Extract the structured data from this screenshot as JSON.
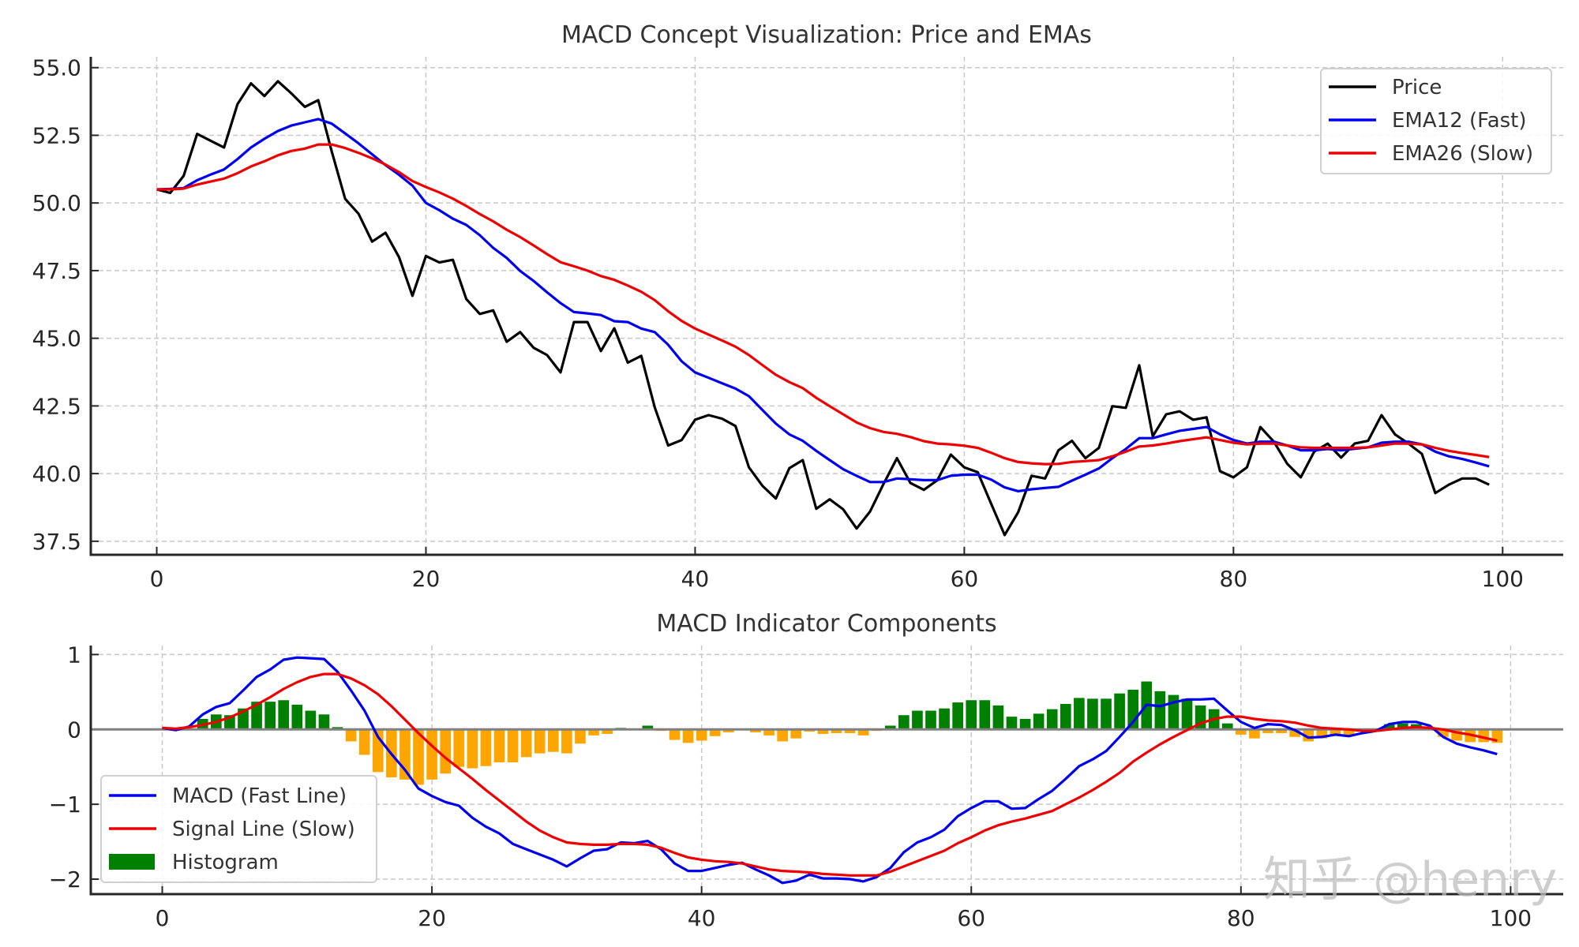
{
  "watermark": "知乎 @henry",
  "chart_data": [
    {
      "type": "line",
      "title": "MACD Concept Visualization: Price and EMAs",
      "xlabel": "",
      "ylabel": "",
      "xlim": [
        -4.9,
        104.5
      ],
      "ylim": [
        37.0,
        55.4
      ],
      "xticks": [
        0,
        20,
        40,
        60,
        80,
        100
      ],
      "yticks": [
        37.5,
        40.0,
        42.5,
        45.0,
        47.5,
        50.0,
        52.5,
        55.0
      ],
      "xtick_labels": [
        "0",
        "20",
        "40",
        "60",
        "80",
        "100"
      ],
      "ytick_labels": [
        "37.5",
        "40.0",
        "42.5",
        "45.0",
        "47.5",
        "50.0",
        "52.5",
        "55.0"
      ],
      "grid": true,
      "legend": "top-right",
      "series": [
        {
          "name": "Price",
          "color": "#000000",
          "values": [
            50.5,
            50.37,
            51.0,
            52.55,
            52.3,
            52.05,
            53.65,
            54.42,
            53.95,
            54.5,
            54.05,
            53.55,
            53.8,
            51.9,
            50.15,
            49.6,
            48.57,
            48.9,
            48.0,
            46.57,
            48.04,
            47.8,
            47.9,
            46.45,
            45.9,
            46.03,
            44.87,
            45.23,
            44.65,
            44.38,
            43.74,
            45.6,
            45.6,
            44.53,
            45.37,
            44.1,
            44.35,
            42.45,
            41.04,
            41.24,
            41.99,
            42.16,
            42.03,
            41.76,
            40.23,
            39.55,
            39.08,
            40.2,
            40.5,
            38.7,
            39.05,
            38.68,
            37.97,
            38.6,
            39.62,
            40.57,
            39.65,
            39.4,
            39.76,
            40.7,
            40.23,
            40.05,
            38.88,
            37.73,
            38.57,
            39.92,
            39.82,
            40.86,
            41.21,
            40.57,
            40.95,
            42.49,
            42.43,
            44.0,
            41.38,
            42.19,
            42.3,
            41.99,
            42.08,
            40.09,
            39.86,
            40.23,
            41.72,
            41.18,
            40.36,
            39.86,
            40.81,
            41.11,
            40.59,
            41.11,
            41.21,
            42.16,
            41.45,
            41.11,
            40.73,
            39.28,
            39.59,
            39.82,
            39.82,
            39.59
          ]
        },
        {
          "name": "EMA12 (Fast)",
          "color": "#0000ee",
          "values": [
            50.5,
            50.52,
            50.55,
            50.84,
            51.05,
            51.24,
            51.62,
            52.05,
            52.37,
            52.66,
            52.86,
            52.98,
            53.1,
            52.93,
            52.57,
            52.2,
            51.8,
            51.4,
            51.04,
            50.64,
            50.0,
            49.73,
            49.42,
            49.19,
            48.81,
            48.34,
            47.97,
            47.49,
            47.12,
            46.7,
            46.3,
            45.97,
            45.92,
            45.86,
            45.63,
            45.6,
            45.36,
            45.23,
            44.76,
            44.15,
            43.74,
            43.54,
            43.34,
            43.14,
            42.86,
            42.35,
            41.85,
            41.45,
            41.21,
            40.84,
            40.5,
            40.16,
            39.92,
            39.69,
            39.69,
            39.82,
            39.79,
            39.76,
            39.76,
            39.92,
            39.96,
            39.96,
            39.78,
            39.49,
            39.35,
            39.42,
            39.47,
            39.51,
            39.74,
            39.96,
            40.19,
            40.57,
            40.91,
            41.31,
            41.31,
            41.45,
            41.58,
            41.65,
            41.72,
            41.45,
            41.24,
            41.11,
            41.18,
            41.18,
            41.04,
            40.86,
            40.86,
            40.91,
            40.86,
            40.92,
            40.97,
            41.14,
            41.18,
            41.18,
            41.08,
            40.81,
            40.64,
            40.54,
            40.41,
            40.27
          ]
        },
        {
          "name": "EMA26 (Slow)",
          "color": "#ee0000",
          "values": [
            50.5,
            50.5,
            50.53,
            50.68,
            50.79,
            50.9,
            51.1,
            51.35,
            51.54,
            51.76,
            51.92,
            52.01,
            52.16,
            52.16,
            52.03,
            51.85,
            51.65,
            51.42,
            51.14,
            50.81,
            50.59,
            50.39,
            50.16,
            49.89,
            49.59,
            49.32,
            49.01,
            48.74,
            48.43,
            48.11,
            47.81,
            47.66,
            47.5,
            47.3,
            47.16,
            46.95,
            46.72,
            46.41,
            46.0,
            45.64,
            45.36,
            45.14,
            44.92,
            44.69,
            44.38,
            44.01,
            43.65,
            43.38,
            43.16,
            42.8,
            42.49,
            42.19,
            41.89,
            41.68,
            41.54,
            41.47,
            41.35,
            41.2,
            41.11,
            41.08,
            41.03,
            40.95,
            40.77,
            40.57,
            40.43,
            40.38,
            40.35,
            40.36,
            40.43,
            40.46,
            40.5,
            40.64,
            40.81,
            41.0,
            41.04,
            41.11,
            41.2,
            41.27,
            41.34,
            41.24,
            41.14,
            41.08,
            41.11,
            41.11,
            41.04,
            40.97,
            40.95,
            40.95,
            40.95,
            40.95,
            40.97,
            41.04,
            41.11,
            41.11,
            41.08,
            40.95,
            40.84,
            40.76,
            40.69,
            40.61
          ]
        }
      ]
    },
    {
      "type": "line",
      "title": "MACD Indicator Components",
      "xlabel": "",
      "ylabel": "",
      "xlim": [
        -5.3,
        103.9
      ],
      "ylim": [
        -2.2,
        1.12
      ],
      "xticks": [
        0,
        20,
        40,
        60,
        80,
        100
      ],
      "yticks": [
        -2,
        -1,
        0,
        1
      ],
      "xtick_labels": [
        "0",
        "20",
        "40",
        "60",
        "80",
        "100"
      ],
      "ytick_labels": [
        "−2",
        "−1",
        "0",
        "1"
      ],
      "grid": true,
      "legend": "lower-left",
      "zero_line_color": "#808080",
      "series": [
        {
          "name": "MACD (Fast Line)",
          "kind": "line",
          "color": "#0000ee",
          "values": [
            0.02,
            -0.01,
            0.04,
            0.2,
            0.3,
            0.35,
            0.52,
            0.7,
            0.8,
            0.93,
            0.96,
            0.95,
            0.94,
            0.77,
            0.52,
            0.25,
            -0.1,
            -0.33,
            -0.54,
            -0.79,
            -0.89,
            -0.97,
            -1.02,
            -1.18,
            -1.3,
            -1.39,
            -1.53,
            -1.6,
            -1.67,
            -1.74,
            -1.83,
            -1.72,
            -1.62,
            -1.6,
            -1.51,
            -1.52,
            -1.49,
            -1.6,
            -1.79,
            -1.89,
            -1.89,
            -1.85,
            -1.81,
            -1.78,
            -1.87,
            -1.95,
            -2.05,
            -2.02,
            -1.94,
            -1.99,
            -1.99,
            -2.0,
            -2.03,
            -1.97,
            -1.85,
            -1.64,
            -1.51,
            -1.44,
            -1.34,
            -1.16,
            -1.05,
            -0.96,
            -0.96,
            -1.06,
            -1.05,
            -0.93,
            -0.82,
            -0.66,
            -0.49,
            -0.4,
            -0.29,
            -0.1,
            0.1,
            0.33,
            0.31,
            0.36,
            0.4,
            0.4,
            0.41,
            0.25,
            0.1,
            0.02,
            0.07,
            0.06,
            -0.01,
            -0.11,
            -0.1,
            -0.07,
            -0.09,
            -0.05,
            -0.02,
            0.07,
            0.1,
            0.1,
            0.05,
            -0.1,
            -0.19,
            -0.24,
            -0.28,
            -0.33
          ]
        },
        {
          "name": "Signal Line (Slow)",
          "kind": "line",
          "color": "#ee0000",
          "values": [
            0.02,
            0.01,
            0.03,
            0.06,
            0.1,
            0.16,
            0.24,
            0.33,
            0.43,
            0.54,
            0.63,
            0.7,
            0.74,
            0.74,
            0.68,
            0.59,
            0.47,
            0.31,
            0.13,
            -0.05,
            -0.22,
            -0.38,
            -0.52,
            -0.66,
            -0.81,
            -0.95,
            -1.09,
            -1.23,
            -1.35,
            -1.44,
            -1.51,
            -1.53,
            -1.54,
            -1.54,
            -1.53,
            -1.53,
            -1.54,
            -1.58,
            -1.65,
            -1.71,
            -1.74,
            -1.76,
            -1.77,
            -1.79,
            -1.83,
            -1.87,
            -1.89,
            -1.9,
            -1.91,
            -1.93,
            -1.94,
            -1.95,
            -1.95,
            -1.95,
            -1.9,
            -1.83,
            -1.76,
            -1.69,
            -1.62,
            -1.52,
            -1.44,
            -1.35,
            -1.28,
            -1.23,
            -1.19,
            -1.14,
            -1.09,
            -1.0,
            -0.91,
            -0.81,
            -0.7,
            -0.58,
            -0.43,
            -0.31,
            -0.2,
            -0.1,
            -0.01,
            0.08,
            0.14,
            0.17,
            0.17,
            0.14,
            0.12,
            0.11,
            0.09,
            0.05,
            0.02,
            0.01,
            0.0,
            -0.02,
            -0.02,
            0.0,
            0.02,
            0.03,
            0.02,
            0.0,
            -0.04,
            -0.07,
            -0.11,
            -0.15
          ]
        },
        {
          "name": "Histogram",
          "kind": "bar",
          "color": "#008000",
          "negative_color": "#ffa500",
          "values": [
            0.0,
            -0.02,
            0.01,
            0.14,
            0.2,
            0.19,
            0.28,
            0.37,
            0.37,
            0.39,
            0.33,
            0.25,
            0.2,
            0.03,
            -0.16,
            -0.34,
            -0.57,
            -0.64,
            -0.67,
            -0.74,
            -0.67,
            -0.59,
            -0.5,
            -0.52,
            -0.49,
            -0.44,
            -0.44,
            -0.37,
            -0.32,
            -0.3,
            -0.32,
            -0.19,
            -0.08,
            -0.06,
            0.02,
            0.01,
            0.05,
            -0.02,
            -0.14,
            -0.18,
            -0.15,
            -0.09,
            -0.04,
            0.01,
            -0.04,
            -0.08,
            -0.16,
            -0.12,
            -0.03,
            -0.06,
            -0.05,
            -0.05,
            -0.08,
            -0.02,
            0.05,
            0.19,
            0.25,
            0.25,
            0.28,
            0.36,
            0.39,
            0.39,
            0.32,
            0.17,
            0.14,
            0.21,
            0.27,
            0.34,
            0.42,
            0.41,
            0.41,
            0.48,
            0.53,
            0.64,
            0.51,
            0.46,
            0.41,
            0.32,
            0.27,
            0.08,
            -0.07,
            -0.12,
            -0.05,
            -0.05,
            -0.1,
            -0.16,
            -0.12,
            -0.08,
            -0.09,
            -0.03,
            0.0,
            0.07,
            0.08,
            0.07,
            0.03,
            -0.1,
            -0.15,
            -0.17,
            -0.17,
            -0.18
          ]
        }
      ]
    }
  ]
}
